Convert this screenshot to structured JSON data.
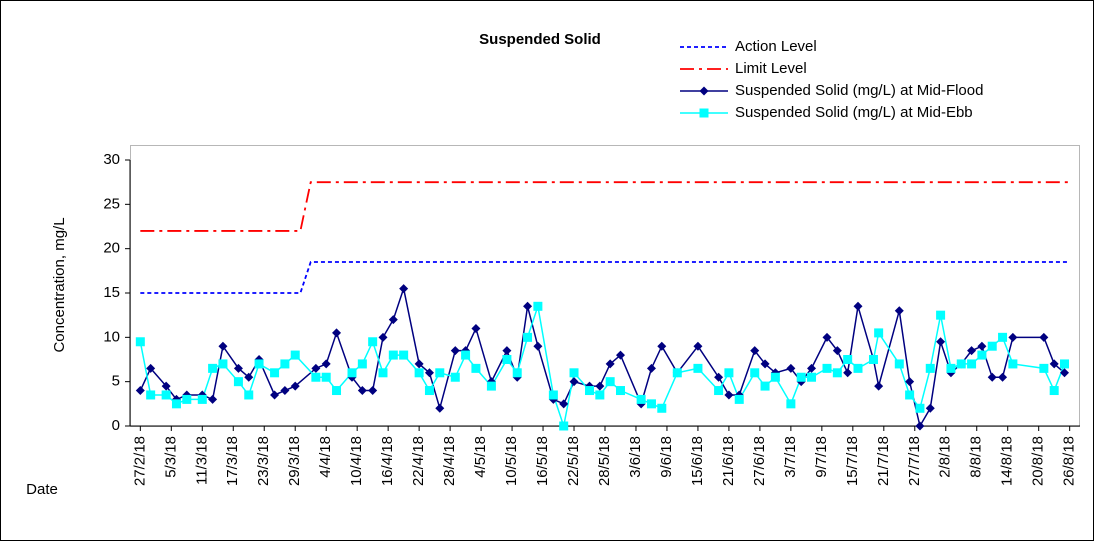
{
  "chart_data": {
    "type": "line",
    "title": "Suspended Solid",
    "y_label": "Concentration, mg/L",
    "x_label": "Date",
    "xlim": [
      "25/2/18",
      "28/8/18"
    ],
    "xticks": [
      "27/2/18",
      "5/3/18",
      "11/3/18",
      "17/3/18",
      "23/3/18",
      "29/3/18",
      "4/4/18",
      "10/4/18",
      "16/4/18",
      "22/4/18",
      "28/4/18",
      "4/5/18",
      "10/5/18",
      "16/5/18",
      "22/5/18",
      "28/5/18",
      "3/6/18",
      "9/6/18",
      "15/6/18",
      "21/6/18",
      "27/6/18",
      "3/7/18",
      "9/7/18",
      "15/7/18",
      "21/7/18",
      "27/7/18",
      "2/8/18",
      "8/8/18",
      "14/8/18",
      "20/8/18",
      "26/8/18"
    ],
    "ylim": [
      0,
      30
    ],
    "yticks": [
      0,
      5,
      10,
      15,
      20,
      25,
      30
    ],
    "x": [
      "27/2/18",
      "1/3/18",
      "4/3/18",
      "6/3/18",
      "8/3/18",
      "11/3/18",
      "13/3/18",
      "15/3/18",
      "18/3/18",
      "20/3/18",
      "22/3/18",
      "25/3/18",
      "27/3/18",
      "29/3/18",
      "2/4/18",
      "4/4/18",
      "6/4/18",
      "9/4/18",
      "11/4/18",
      "13/4/18",
      "15/4/18",
      "17/4/18",
      "19/4/18",
      "22/4/18",
      "24/4/18",
      "26/4/18",
      "29/4/18",
      "1/5/18",
      "3/5/18",
      "6/5/18",
      "9/5/18",
      "11/5/18",
      "13/5/18",
      "15/5/18",
      "18/5/18",
      "20/5/18",
      "22/5/18",
      "25/5/18",
      "27/5/18",
      "29/5/18",
      "31/5/18",
      "4/6/18",
      "6/6/18",
      "8/6/18",
      "11/6/18",
      "15/6/18",
      "19/6/18",
      "21/6/18",
      "23/6/18",
      "26/6/18",
      "28/6/18",
      "30/6/18",
      "3/7/18",
      "5/7/18",
      "7/7/18",
      "10/7/18",
      "12/7/18",
      "14/7/18",
      "16/7/18",
      "19/7/18",
      "20/7/18",
      "24/7/18",
      "26/7/18",
      "28/7/18",
      "30/7/18",
      "1/8/18",
      "3/8/18",
      "5/8/18",
      "7/8/18",
      "9/8/18",
      "11/8/18",
      "13/8/18",
      "15/8/18",
      "21/8/18",
      "23/8/18",
      "25/8/18"
    ],
    "series": [
      {
        "name": "Action Level",
        "color": "#0000ff",
        "style": "dash",
        "x": [
          "27/2/18",
          "30/3/18",
          "1/4/18",
          "26/8/18"
        ],
        "values": [
          15,
          15,
          18.5,
          18.5
        ]
      },
      {
        "name": "Limit Level",
        "color": "#ff0000",
        "style": "dashdot",
        "x": [
          "27/2/18",
          "30/3/18",
          "1/4/18",
          "26/8/18"
        ],
        "values": [
          22,
          22,
          27.5,
          27.5
        ]
      },
      {
        "name": "Suspended Solid (mg/L) at Mid-Flood",
        "color": "#000080",
        "marker": "diamond",
        "values": [
          4,
          6.5,
          4.5,
          3,
          3.5,
          3.5,
          3,
          9,
          6.5,
          5.5,
          7.5,
          3.5,
          4,
          4.5,
          6.5,
          7,
          10.5,
          5.5,
          4,
          4,
          10,
          12,
          15.5,
          7,
          6,
          2,
          8.5,
          8.5,
          11,
          5,
          8.5,
          5.5,
          13.5,
          9,
          3,
          2.5,
          5,
          4.5,
          4.5,
          7,
          8,
          2.5,
          6.5,
          9,
          6,
          9,
          5.5,
          3.5,
          3.5,
          8.5,
          7,
          6,
          6.5,
          5,
          6.5,
          10,
          8.5,
          6,
          13.5,
          7.5,
          4.5,
          13,
          5,
          0,
          2,
          9.5,
          6,
          7,
          8.5,
          9,
          5.5,
          5.5,
          10,
          10,
          7,
          6
        ]
      },
      {
        "name": "Suspended Solid (mg/L) at Mid-Ebb",
        "color": "#00ffff",
        "marker": "square",
        "values": [
          9.5,
          3.5,
          3.5,
          2.5,
          3,
          3,
          6.5,
          7,
          5,
          3.5,
          7,
          6,
          7,
          8,
          5.5,
          5.5,
          4,
          6,
          7,
          9.5,
          6,
          8,
          8,
          6,
          4,
          6,
          5.5,
          8,
          6.5,
          4.5,
          7.5,
          6,
          10,
          13.5,
          3.5,
          0,
          6,
          4,
          3.5,
          5,
          4,
          3,
          2.5,
          2,
          6,
          6.5,
          4,
          6,
          3,
          6,
          4.5,
          5.5,
          2.5,
          5.5,
          5.5,
          6.5,
          6,
          7.5,
          6.5,
          7.5,
          10.5,
          7,
          3.5,
          2,
          6.5,
          12.5,
          6.5,
          7,
          7,
          8,
          9,
          10,
          7,
          6.5,
          4,
          7
        ]
      }
    ]
  }
}
